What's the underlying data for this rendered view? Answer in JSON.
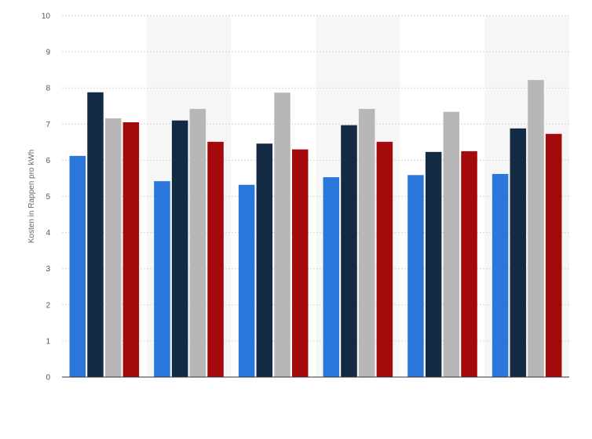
{
  "chart_data": {
    "type": "bar",
    "ylabel": "Kosten in Rappen pro kWh",
    "ylim": [
      0,
      10
    ],
    "yticks": [
      0,
      1,
      2,
      3,
      4,
      5,
      6,
      7,
      8,
      9,
      10
    ],
    "grid": true,
    "categories": [
      "",
      "",
      "",
      "",
      "",
      ""
    ],
    "series": [
      {
        "color": "#2a77db",
        "values": [
          6.12,
          5.42,
          5.32,
          5.53,
          5.59,
          5.62
        ]
      },
      {
        "color": "#132a44",
        "values": [
          7.88,
          7.1,
          6.46,
          6.97,
          6.23,
          6.88
        ]
      },
      {
        "color": "#b7b7b7",
        "values": [
          7.16,
          7.42,
          7.87,
          7.42,
          7.34,
          8.22
        ]
      },
      {
        "color": "#a4090b",
        "values": [
          7.05,
          6.51,
          6.3,
          6.51,
          6.25,
          6.73
        ]
      }
    ]
  }
}
